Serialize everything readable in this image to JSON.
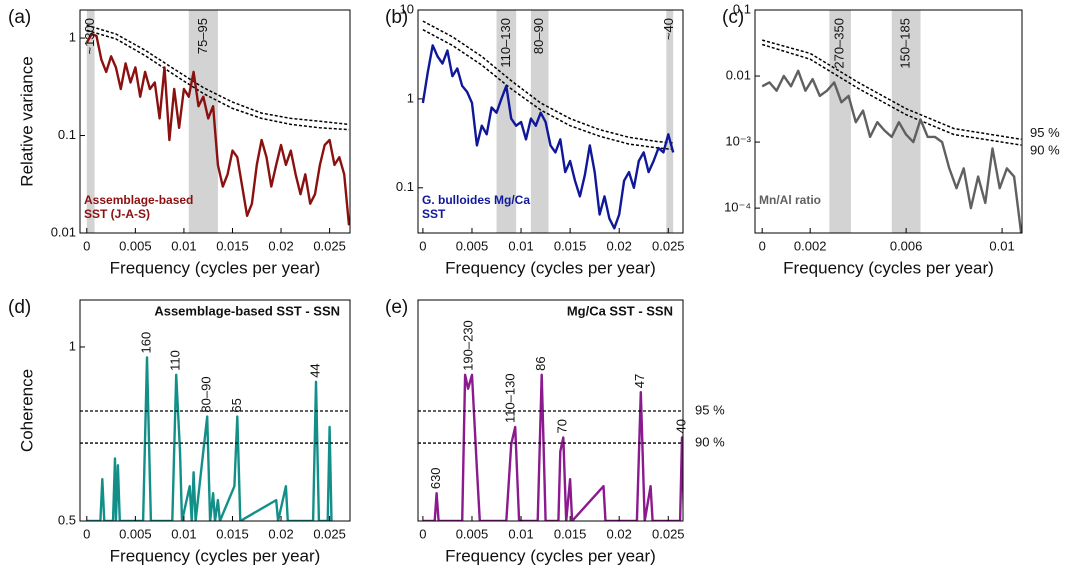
{
  "chart_data": [
    {
      "type": "line",
      "panel": "(a)",
      "ylabel": "Relative variance",
      "xlabel": "Frequency (cycles per year)",
      "log_y": true,
      "legend": "lower left",
      "xlim": [
        -0.0007,
        0.0271
      ],
      "xticks": [
        0,
        0.005,
        0.01,
        0.015,
        0.02,
        0.025
      ],
      "ylim": [
        0.01,
        1.94
      ],
      "yticks": [
        0.01,
        0.1,
        1
      ],
      "bands": [
        {
          "from": 0,
          "to": 0.0008,
          "label": "~1300"
        },
        {
          "from": 0.0105,
          "to": 0.0135,
          "label": "75–95"
        }
      ],
      "series": [
        {
          "name": "Assemblage-based SST (J-A-S)",
          "color": "#8b1010",
          "x": [
            0,
            0.0005,
            0.001,
            0.0015,
            0.002,
            0.0025,
            0.003,
            0.0035,
            0.004,
            0.0045,
            0.005,
            0.0055,
            0.006,
            0.0065,
            0.007,
            0.0075,
            0.008,
            0.0085,
            0.009,
            0.0095,
            0.01,
            0.0105,
            0.011,
            0.0115,
            0.012,
            0.0125,
            0.013,
            0.0135,
            0.014,
            0.0145,
            0.015,
            0.0155,
            0.016,
            0.0165,
            0.017,
            0.0175,
            0.018,
            0.0185,
            0.019,
            0.0195,
            0.02,
            0.0205,
            0.021,
            0.0215,
            0.022,
            0.0225,
            0.023,
            0.0235,
            0.024,
            0.0245,
            0.025,
            0.0255,
            0.026,
            0.0265,
            0.027
          ],
          "values": [
            0.9,
            1.1,
            1.05,
            0.6,
            0.45,
            0.65,
            0.5,
            0.3,
            0.55,
            0.35,
            0.5,
            0.25,
            0.45,
            0.3,
            0.35,
            0.15,
            0.5,
            0.09,
            0.3,
            0.12,
            0.3,
            0.25,
            0.45,
            0.2,
            0.25,
            0.15,
            0.2,
            0.05,
            0.03,
            0.04,
            0.07,
            0.06,
            0.03,
            0.015,
            0.02,
            0.05,
            0.09,
            0.06,
            0.03,
            0.05,
            0.08,
            0.05,
            0.07,
            0.04,
            0.025,
            0.04,
            0.02,
            0.025,
            0.05,
            0.08,
            0.09,
            0.05,
            0.06,
            0.04,
            0.012
          ]
        }
      ],
      "thresholds": [
        {
          "x": [
            0,
            0.003,
            0.006,
            0.009,
            0.012,
            0.015,
            0.018,
            0.021,
            0.024,
            0.027
          ],
          "values": [
            1.35,
            1.1,
            0.75,
            0.48,
            0.31,
            0.22,
            0.17,
            0.15,
            0.14,
            0.13
          ]
        },
        {
          "x": [
            0,
            0.003,
            0.006,
            0.009,
            0.012,
            0.015,
            0.018,
            0.021,
            0.024,
            0.027
          ],
          "values": [
            1.2,
            0.98,
            0.66,
            0.42,
            0.27,
            0.19,
            0.15,
            0.13,
            0.12,
            0.115
          ]
        }
      ]
    },
    {
      "type": "line",
      "panel": "(b)",
      "xlabel": "Frequency (cycles per year)",
      "log_y": true,
      "legend": "lower left",
      "xlim": [
        -0.0005,
        0.0265
      ],
      "xticks": [
        0,
        0.005,
        0.01,
        0.015,
        0.02,
        0.025
      ],
      "ylim": [
        0.031,
        10
      ],
      "yticks": [
        0.1,
        1,
        10
      ],
      "bands": [
        {
          "from": 0.0075,
          "to": 0.0095,
          "label": "110–130"
        },
        {
          "from": 0.011,
          "to": 0.0128,
          "label": "80–90"
        },
        {
          "from": 0.0248,
          "to": 0.0255,
          "label": "~40"
        }
      ],
      "series": [
        {
          "name": "G. bulloides Mg/Ca SST",
          "color": "#10189a",
          "x": [
            0,
            0.0005,
            0.001,
            0.0015,
            0.002,
            0.0025,
            0.003,
            0.0035,
            0.004,
            0.0045,
            0.005,
            0.0055,
            0.006,
            0.0065,
            0.007,
            0.0075,
            0.008,
            0.0085,
            0.009,
            0.0095,
            0.01,
            0.0105,
            0.011,
            0.0115,
            0.012,
            0.0125,
            0.013,
            0.0135,
            0.014,
            0.0145,
            0.015,
            0.0155,
            0.016,
            0.0165,
            0.017,
            0.0175,
            0.018,
            0.0185,
            0.019,
            0.0195,
            0.02,
            0.0205,
            0.021,
            0.0215,
            0.022,
            0.0225,
            0.023,
            0.0235,
            0.024,
            0.0245,
            0.025,
            0.0255
          ],
          "values": [
            0.9,
            2,
            4,
            3,
            2.5,
            3.5,
            1.8,
            2.2,
            1.4,
            1.2,
            0.9,
            0.3,
            0.5,
            0.4,
            0.8,
            0.7,
            1,
            1.4,
            0.6,
            0.5,
            0.55,
            0.35,
            0.6,
            0.5,
            0.7,
            0.55,
            0.3,
            0.25,
            0.35,
            0.15,
            0.2,
            0.12,
            0.08,
            0.14,
            0.3,
            0.15,
            0.05,
            0.08,
            0.045,
            0.035,
            0.05,
            0.12,
            0.15,
            0.1,
            0.2,
            0.25,
            0.15,
            0.2,
            0.28,
            0.25,
            0.4,
            0.25
          ]
        }
      ],
      "thresholds": [
        {
          "x": [
            0,
            0.003,
            0.006,
            0.009,
            0.012,
            0.015,
            0.018,
            0.021,
            0.024,
            0.0255
          ],
          "values": [
            7.5,
            5,
            3,
            1.6,
            0.9,
            0.6,
            0.45,
            0.37,
            0.33,
            0.32
          ]
        },
        {
          "x": [
            0,
            0.003,
            0.006,
            0.009,
            0.012,
            0.015,
            0.018,
            0.021,
            0.024,
            0.0255
          ],
          "values": [
            6,
            4,
            2.4,
            1.3,
            0.75,
            0.5,
            0.38,
            0.31,
            0.28,
            0.27
          ]
        }
      ]
    },
    {
      "type": "line",
      "panel": "(c)",
      "xlabel": "Frequency (cycles per year)",
      "log_y": true,
      "legend": "lower left",
      "xlim": [
        -0.0003,
        0.01083
      ],
      "xticks": [
        0,
        0.002,
        0.006,
        0.01
      ],
      "ylim": [
        4.2e-05,
        0.1
      ],
      "yticks": [
        {
          "value": 0.0001,
          "label": "10⁻⁴"
        },
        {
          "value": 0.001,
          "label": "10⁻³"
        },
        0.01,
        0.1
      ],
      "bands": [
        {
          "from": 0.0028,
          "to": 0.0037,
          "label": "270–350"
        },
        {
          "from": 0.0054,
          "to": 0.0066,
          "label": "150–185"
        }
      ],
      "series": [
        {
          "name": "Mn/Al ratio",
          "color": "#606060",
          "x": [
            0,
            0.0003,
            0.0006,
            0.0009,
            0.0012,
            0.0015,
            0.0018,
            0.0021,
            0.0024,
            0.0027,
            0.003,
            0.0033,
            0.0036,
            0.0039,
            0.0042,
            0.0045,
            0.0048,
            0.0051,
            0.0054,
            0.0057,
            0.006,
            0.0063,
            0.0066,
            0.0069,
            0.0072,
            0.0075,
            0.0078,
            0.0081,
            0.0084,
            0.0087,
            0.009,
            0.0093,
            0.0096,
            0.0099,
            0.0102,
            0.0105,
            0.0108
          ],
          "values": [
            0.007,
            0.008,
            0.006,
            0.01,
            0.007,
            0.012,
            0.006,
            0.009,
            0.005,
            0.006,
            0.008,
            0.004,
            0.005,
            0.002,
            0.003,
            0.0012,
            0.002,
            0.0015,
            0.0012,
            0.002,
            0.0013,
            0.001,
            0.0022,
            0.0012,
            0.0012,
            0.001,
            0.0004,
            0.0002,
            0.0004,
            0.0001,
            0.0003,
            0.00012,
            0.0008,
            0.0002,
            0.0004,
            0.0003,
            4e-05
          ]
        }
      ],
      "thresholds": [
        {
          "label": "95 %",
          "x": [
            0,
            0.002,
            0.004,
            0.006,
            0.008,
            0.0108
          ],
          "values": [
            0.035,
            0.022,
            0.008,
            0.0032,
            0.0016,
            0.0011
          ]
        },
        {
          "label": "90 %",
          "x": [
            0,
            0.002,
            0.004,
            0.006,
            0.008,
            0.0108
          ],
          "values": [
            0.03,
            0.018,
            0.0065,
            0.0026,
            0.0013,
            0.0009
          ]
        }
      ]
    },
    {
      "type": "line",
      "panel": "(d)",
      "ylabel": "Coherence",
      "xlabel": "Frequency (cycles per year)",
      "legend": "upper right",
      "xlim": [
        -0.0007,
        0.0271
      ],
      "xticks": [
        0,
        0.005,
        0.01,
        0.015,
        0.02,
        0.025
      ],
      "ylim": [
        0.5,
        1.135
      ],
      "yticks": [
        0.5,
        1
      ],
      "hlines": [
        0.816,
        0.724
      ],
      "annotations": [
        {
          "x": 0.0062,
          "text": "160"
        },
        {
          "x": 0.0092,
          "text": "110"
        },
        {
          "x": 0.0124,
          "text": "80–90"
        },
        {
          "x": 0.0155,
          "text": "65"
        },
        {
          "x": 0.0236,
          "text": "44"
        }
      ],
      "series": [
        {
          "name": "Assemblage-based SST - SSN",
          "color": "#138f8a",
          "x": [
            0,
            0.0014,
            0.0016,
            0.0018,
            0.0027,
            0.0029,
            0.003,
            0.0032,
            0.0034,
            0.0058,
            0.0062,
            0.0066,
            0.0088,
            0.0092,
            0.0096,
            0.0098,
            0.0106,
            0.0108,
            0.011,
            0.0112,
            0.012,
            0.0124,
            0.0127,
            0.013,
            0.0132,
            0.0135,
            0.0137,
            0.0152,
            0.0155,
            0.0158,
            0.0195,
            0.0197,
            0.0205,
            0.0207,
            0.0233,
            0.0236,
            0.0239,
            0.0248,
            0.025,
            0.0252
          ],
          "values": [
            0.5,
            0.5,
            0.62,
            0.5,
            0.5,
            0.68,
            0.5,
            0.66,
            0.5,
            0.5,
            0.97,
            0.5,
            0.5,
            0.92,
            0.7,
            0.5,
            0.6,
            0.5,
            0.64,
            0.5,
            0.7,
            0.8,
            0.5,
            0.58,
            0.5,
            0.56,
            0.5,
            0.6,
            0.8,
            0.5,
            0.56,
            0.5,
            0.6,
            0.5,
            0.5,
            0.9,
            0.5,
            0.5,
            0.77,
            0.5
          ]
        }
      ]
    },
    {
      "type": "line",
      "panel": "(e)",
      "xlabel": "Frequency (cycles per year)",
      "legend": "upper right",
      "xlim": [
        -0.0005,
        0.0265
      ],
      "xticks": [
        0,
        0.005,
        0.01,
        0.015,
        0.02,
        0.025
      ],
      "ylim": [
        0.5,
        1.135
      ],
      "hlines": [
        {
          "value": 0.816,
          "label": "95 %"
        },
        {
          "value": 0.724,
          "label": "90 %"
        }
      ],
      "annotations": [
        {
          "x": 0.0014,
          "text": "630"
        },
        {
          "x": 0.0047,
          "text": "190–230"
        },
        {
          "x": 0.009,
          "text": "110–130"
        },
        {
          "x": 0.0121,
          "text": "86"
        },
        {
          "x": 0.0143,
          "text": "70"
        },
        {
          "x": 0.0222,
          "text": "47"
        },
        {
          "x": 0.0264,
          "text": "40"
        }
      ],
      "series": [
        {
          "name": "Mg/Ca SST - SSN",
          "color": "#8b1a8f",
          "x": [
            0,
            0.0012,
            0.0014,
            0.0016,
            0.004,
            0.0043,
            0.0046,
            0.005,
            0.0055,
            0.0058,
            0.0085,
            0.009,
            0.0094,
            0.0098,
            0.0117,
            0.0121,
            0.0125,
            0.0138,
            0.014,
            0.0143,
            0.0146,
            0.015,
            0.0152,
            0.0184,
            0.0186,
            0.0218,
            0.0222,
            0.0226,
            0.0232,
            0.0234,
            0.0262,
            0.0264,
            0.0266
          ],
          "values": [
            0.5,
            0.5,
            0.58,
            0.5,
            0.5,
            0.92,
            0.88,
            0.92,
            0.65,
            0.5,
            0.5,
            0.72,
            0.77,
            0.5,
            0.5,
            0.92,
            0.5,
            0.5,
            0.7,
            0.74,
            0.5,
            0.62,
            0.5,
            0.6,
            0.5,
            0.5,
            0.87,
            0.5,
            0.6,
            0.5,
            0.5,
            0.74,
            0.5
          ]
        }
      ]
    }
  ]
}
